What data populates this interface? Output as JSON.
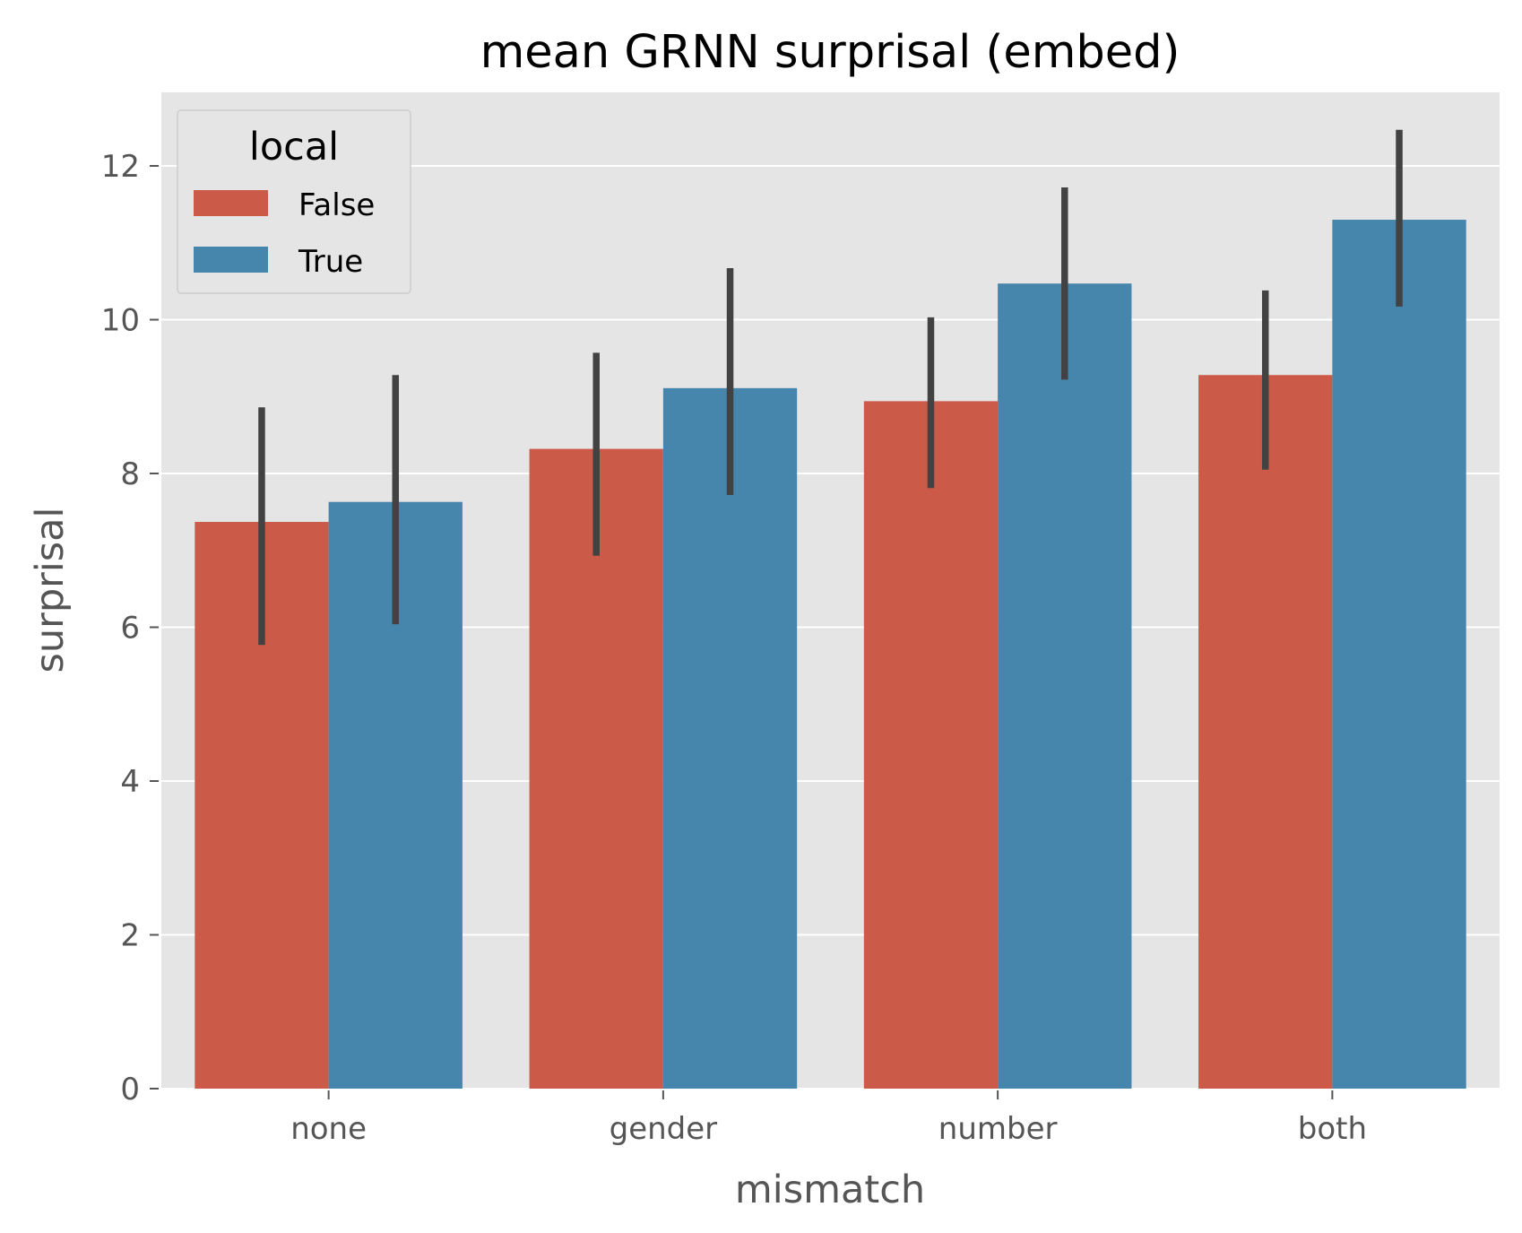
{
  "chart_data": {
    "type": "bar",
    "title": "mean GRNN surprisal (embed)",
    "xlabel": "mismatch",
    "ylabel": "surprisal",
    "categories": [
      "none",
      "gender",
      "number",
      "both"
    ],
    "ylim": [
      0,
      13
    ],
    "yticks": [
      0,
      2,
      4,
      6,
      8,
      10,
      12
    ],
    "yticks_text": [
      "0",
      "2",
      "4",
      "6",
      "8",
      "10",
      "12"
    ],
    "grid": true,
    "legend": {
      "title": "local",
      "position": "top-left"
    },
    "series": [
      {
        "name": "False",
        "color": "#cb5a48",
        "values": [
          7.37,
          8.32,
          8.94,
          9.28
        ],
        "ci_low": [
          5.77,
          6.93,
          7.81,
          8.05
        ],
        "ci_high": [
          8.86,
          9.57,
          10.03,
          10.38
        ]
      },
      {
        "name": "True",
        "color": "#4686ad",
        "values": [
          7.63,
          9.11,
          10.47,
          11.3
        ],
        "ci_low": [
          6.04,
          7.72,
          9.22,
          10.17
        ],
        "ci_high": [
          9.28,
          10.67,
          11.72,
          12.47
        ]
      }
    ]
  }
}
